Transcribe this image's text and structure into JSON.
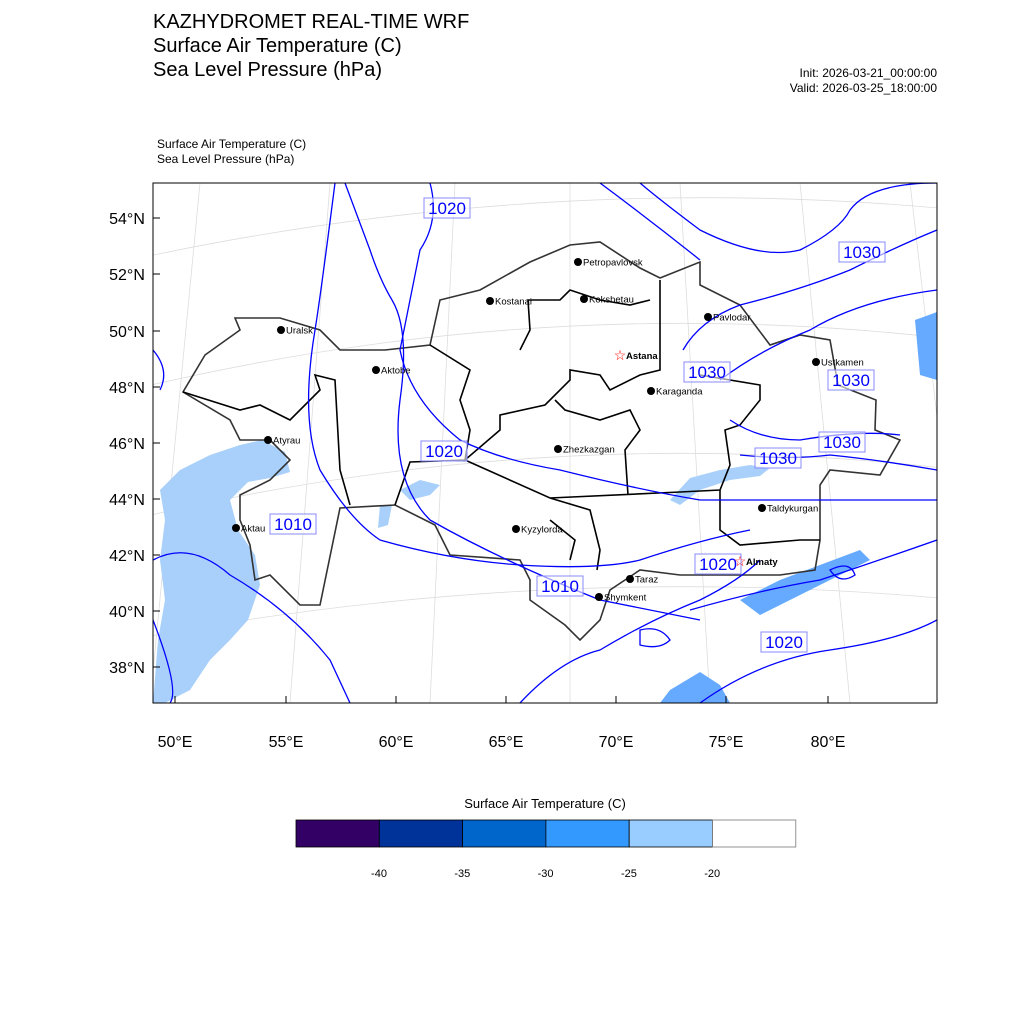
{
  "header": {
    "title_lines": [
      "KAZHYDROMET REAL-TIME WRF",
      "Surface Air Temperature  (C)",
      "Sea Level Pressure  (hPa)"
    ],
    "init": "Init: 2026-03-21_00:00:00",
    "valid": "Valid: 2026-03-25_18:00:00",
    "sub_lines": [
      "Surface Air Temperature   (C)",
      "Sea Level Pressure   (hPa)"
    ]
  },
  "map": {
    "lat_ticks": [
      "54°N",
      "52°N",
      "50°N",
      "48°N",
      "46°N",
      "44°N",
      "42°N",
      "40°N",
      "38°N"
    ],
    "lon_ticks": [
      "50°E",
      "55°E",
      "60°E",
      "65°E",
      "70°E",
      "75°E",
      "80°E"
    ],
    "cities": [
      {
        "name": "Petropavlovsk",
        "capital": false
      },
      {
        "name": "Kostanai",
        "capital": false
      },
      {
        "name": "Kokshetau",
        "capital": false
      },
      {
        "name": "Pavlodar",
        "capital": false
      },
      {
        "name": "Uralsk",
        "capital": false
      },
      {
        "name": "Astana",
        "capital": true
      },
      {
        "name": "Aktobe",
        "capital": false
      },
      {
        "name": "Ustkamen",
        "capital": false
      },
      {
        "name": "Karaganda",
        "capital": false
      },
      {
        "name": "Atyrau",
        "capital": false
      },
      {
        "name": "Zhezkazgan",
        "capital": false
      },
      {
        "name": "Kyzylorda",
        "capital": false
      },
      {
        "name": "Aktau",
        "capital": false
      },
      {
        "name": "Taldykurgan",
        "capital": false
      },
      {
        "name": "Almaty",
        "capital": true
      },
      {
        "name": "Taraz",
        "capital": false
      },
      {
        "name": "Shymkent",
        "capital": false
      }
    ],
    "pressure_labels": [
      "1020",
      "1030",
      "1030",
      "1030",
      "1020",
      "1030",
      "1030",
      "1010",
      "1020",
      "1010",
      "1020"
    ],
    "colors": {
      "contour": "#0000ff",
      "water": "#a8d0fa",
      "capital": "#ff0000"
    }
  },
  "colorbar": {
    "title": "Surface Air Temperature (C)",
    "colors": [
      "#330066",
      "#003399",
      "#0066cc",
      "#3399ff",
      "#99ccff",
      "#ffffff"
    ],
    "labels": [
      "-40",
      "-35",
      "-30",
      "-25",
      "-20"
    ]
  }
}
